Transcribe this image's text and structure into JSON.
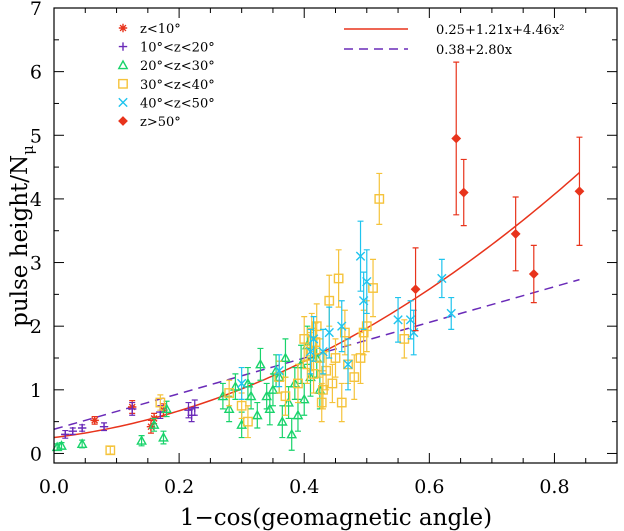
{
  "chart_data": {
    "type": "scatter",
    "xlabel": "1−cos(geomagnetic angle)",
    "ylabel_main": "pulse height/N",
    "ylabel_sub": "μ",
    "xlim": [
      0,
      0.9
    ],
    "ylim": [
      -0.15,
      7
    ],
    "xticks": [
      0.0,
      0.2,
      0.4,
      0.6,
      0.8
    ],
    "xtick_labels": [
      "0.0",
      "0.2",
      "0.4",
      "0.6",
      "0.8"
    ],
    "yticks": [
      0,
      1,
      2,
      3,
      4,
      5,
      6,
      7
    ],
    "ytick_labels": [
      "0",
      "1",
      "2",
      "3",
      "4",
      "5",
      "6",
      "7"
    ],
    "grid": false,
    "legend_position": "top-left and top-center",
    "series": [
      {
        "name": "z<10°",
        "marker": "asterisk",
        "color": "#e8341c",
        "points": [
          {
            "x": 0.065,
            "y": 0.52,
            "e": 0.06
          },
          {
            "x": 0.125,
            "y": 0.73,
            "e": 0.1
          },
          {
            "x": 0.155,
            "y": 0.42,
            "e": 0.1
          },
          {
            "x": 0.16,
            "y": 0.55,
            "e": 0.08
          },
          {
            "x": 0.175,
            "y": 0.68,
            "e": 0.1
          }
        ]
      },
      {
        "name": "10°<z<20°",
        "marker": "plus",
        "color": "#6a2bb8",
        "points": [
          {
            "x": 0.018,
            "y": 0.3,
            "e": 0.06
          },
          {
            "x": 0.03,
            "y": 0.35,
            "e": 0.05
          },
          {
            "x": 0.045,
            "y": 0.4,
            "e": 0.05
          },
          {
            "x": 0.08,
            "y": 0.42,
            "e": 0.06
          },
          {
            "x": 0.125,
            "y": 0.7,
            "e": 0.1
          },
          {
            "x": 0.17,
            "y": 0.65,
            "e": 0.1
          },
          {
            "x": 0.215,
            "y": 0.68,
            "e": 0.12
          },
          {
            "x": 0.225,
            "y": 0.72,
            "e": 0.12
          },
          {
            "x": 0.22,
            "y": 0.6,
            "e": 0.1
          }
        ]
      },
      {
        "name": "20°<z<30°",
        "marker": "triangle",
        "color": "#19d36b",
        "points": [
          {
            "x": 0.005,
            "y": 0.1,
            "e": 0.05
          },
          {
            "x": 0.012,
            "y": 0.12,
            "e": 0.05
          },
          {
            "x": 0.045,
            "y": 0.15,
            "e": 0.06
          },
          {
            "x": 0.14,
            "y": 0.2,
            "e": 0.08
          },
          {
            "x": 0.16,
            "y": 0.45,
            "e": 0.1
          },
          {
            "x": 0.175,
            "y": 0.25,
            "e": 0.1
          },
          {
            "x": 0.18,
            "y": 0.7,
            "e": 0.12
          },
          {
            "x": 0.27,
            "y": 0.9,
            "e": 0.2
          },
          {
            "x": 0.28,
            "y": 0.7,
            "e": 0.2
          },
          {
            "x": 0.29,
            "y": 1.05,
            "e": 0.2
          },
          {
            "x": 0.3,
            "y": 0.45,
            "e": 0.2
          },
          {
            "x": 0.31,
            "y": 1.1,
            "e": 0.25
          },
          {
            "x": 0.315,
            "y": 0.9,
            "e": 0.2
          },
          {
            "x": 0.325,
            "y": 0.6,
            "e": 0.2
          },
          {
            "x": 0.33,
            "y": 1.4,
            "e": 0.25
          },
          {
            "x": 0.34,
            "y": 0.9,
            "e": 0.2
          },
          {
            "x": 0.345,
            "y": 0.7,
            "e": 0.25
          },
          {
            "x": 0.35,
            "y": 1.0,
            "e": 0.25
          },
          {
            "x": 0.355,
            "y": 1.3,
            "e": 0.25
          },
          {
            "x": 0.36,
            "y": 1.2,
            "e": 0.25
          },
          {
            "x": 0.365,
            "y": 0.5,
            "e": 0.25
          },
          {
            "x": 0.37,
            "y": 1.5,
            "e": 0.3
          },
          {
            "x": 0.375,
            "y": 0.8,
            "e": 0.25
          },
          {
            "x": 0.38,
            "y": 0.3,
            "e": 0.25
          },
          {
            "x": 0.385,
            "y": 1.1,
            "e": 0.25
          },
          {
            "x": 0.39,
            "y": 0.6,
            "e": 0.25
          },
          {
            "x": 0.395,
            "y": 1.4,
            "e": 0.3
          },
          {
            "x": 0.4,
            "y": 0.85,
            "e": 0.25
          },
          {
            "x": 0.405,
            "y": 1.7,
            "e": 0.3
          },
          {
            "x": 0.41,
            "y": 1.2,
            "e": 0.3
          },
          {
            "x": 0.42,
            "y": 1.5,
            "e": 0.3
          },
          {
            "x": 0.425,
            "y": 1.0,
            "e": 0.3
          }
        ]
      },
      {
        "name": "30°<z<40°",
        "marker": "square",
        "color": "#f5c33b",
        "points": [
          {
            "x": 0.09,
            "y": 0.05,
            "e": 0.06
          },
          {
            "x": 0.17,
            "y": 0.8,
            "e": 0.12
          },
          {
            "x": 0.28,
            "y": 0.95,
            "e": 0.2
          },
          {
            "x": 0.3,
            "y": 0.75,
            "e": 0.2
          },
          {
            "x": 0.31,
            "y": 0.5,
            "e": 0.25
          },
          {
            "x": 0.36,
            "y": 1.2,
            "e": 0.25
          },
          {
            "x": 0.37,
            "y": 0.9,
            "e": 0.3
          },
          {
            "x": 0.39,
            "y": 1.1,
            "e": 0.3
          },
          {
            "x": 0.4,
            "y": 1.8,
            "e": 0.35
          },
          {
            "x": 0.405,
            "y": 1.4,
            "e": 0.3
          },
          {
            "x": 0.41,
            "y": 1.6,
            "e": 0.3
          },
          {
            "x": 0.412,
            "y": 1.9,
            "e": 0.3
          },
          {
            "x": 0.415,
            "y": 1.25,
            "e": 0.3
          },
          {
            "x": 0.418,
            "y": 1.75,
            "e": 0.3
          },
          {
            "x": 0.42,
            "y": 2.0,
            "e": 0.35
          },
          {
            "x": 0.425,
            "y": 1.5,
            "e": 0.3
          },
          {
            "x": 0.428,
            "y": 0.8,
            "e": 0.3
          },
          {
            "x": 0.43,
            "y": 1.0,
            "e": 0.3
          },
          {
            "x": 0.435,
            "y": 1.3,
            "e": 0.3
          },
          {
            "x": 0.44,
            "y": 2.4,
            "e": 0.4
          },
          {
            "x": 0.445,
            "y": 1.1,
            "e": 0.3
          },
          {
            "x": 0.45,
            "y": 1.5,
            "e": 0.3
          },
          {
            "x": 0.455,
            "y": 2.75,
            "e": 0.45
          },
          {
            "x": 0.46,
            "y": 0.8,
            "e": 0.3
          },
          {
            "x": 0.465,
            "y": 1.9,
            "e": 0.35
          },
          {
            "x": 0.47,
            "y": 1.4,
            "e": 0.3
          },
          {
            "x": 0.48,
            "y": 1.2,
            "e": 0.35
          },
          {
            "x": 0.49,
            "y": 1.5,
            "e": 0.4
          },
          {
            "x": 0.495,
            "y": 1.9,
            "e": 0.35
          },
          {
            "x": 0.5,
            "y": 2.0,
            "e": 0.4
          },
          {
            "x": 0.51,
            "y": 2.6,
            "e": 0.45
          },
          {
            "x": 0.52,
            "y": 4.0,
            "e": 0.4
          },
          {
            "x": 0.56,
            "y": 1.8,
            "e": 0.3
          }
        ]
      },
      {
        "name": "40°<z<50°",
        "marker": "cross",
        "color": "#1fc4ee",
        "points": [
          {
            "x": 0.3,
            "y": 1.1,
            "e": 0.25
          },
          {
            "x": 0.36,
            "y": 1.3,
            "e": 0.25
          },
          {
            "x": 0.41,
            "y": 1.6,
            "e": 0.35
          },
          {
            "x": 0.415,
            "y": 1.8,
            "e": 0.35
          },
          {
            "x": 0.43,
            "y": 1.6,
            "e": 0.35
          },
          {
            "x": 0.44,
            "y": 1.9,
            "e": 0.4
          },
          {
            "x": 0.46,
            "y": 2.0,
            "e": 0.4
          },
          {
            "x": 0.47,
            "y": 1.4,
            "e": 0.4
          },
          {
            "x": 0.49,
            "y": 3.1,
            "e": 0.55
          },
          {
            "x": 0.495,
            "y": 2.4,
            "e": 0.45
          },
          {
            "x": 0.5,
            "y": 2.7,
            "e": 0.5
          },
          {
            "x": 0.55,
            "y": 2.1,
            "e": 0.35
          },
          {
            "x": 0.57,
            "y": 2.1,
            "e": 0.3
          },
          {
            "x": 0.575,
            "y": 1.9,
            "e": 0.35
          },
          {
            "x": 0.62,
            "y": 2.75,
            "e": 0.3
          },
          {
            "x": 0.635,
            "y": 2.2,
            "e": 0.25
          }
        ]
      },
      {
        "name": "z>50°",
        "marker": "diamond",
        "color": "#e8341c",
        "points": [
          {
            "x": 0.578,
            "y": 2.58,
            "e": 0.65
          },
          {
            "x": 0.643,
            "y": 4.95,
            "e": 1.2
          },
          {
            "x": 0.655,
            "y": 4.1,
            "e": 0.52
          },
          {
            "x": 0.738,
            "y": 3.45,
            "e": 0.58
          },
          {
            "x": 0.767,
            "y": 2.82,
            "e": 0.45
          },
          {
            "x": 0.84,
            "y": 4.12,
            "e": 0.85
          }
        ]
      }
    ],
    "fits": [
      {
        "name": "0.25+1.21x+4.46x²",
        "style": "solid",
        "color": "#e8341c",
        "coefficients": [
          0.25,
          1.21,
          4.46
        ],
        "xrange": [
          0,
          0.84
        ]
      },
      {
        "name": "0.38+2.80x",
        "style": "dashed",
        "color": "#6a2bb8",
        "coefficients": [
          0.38,
          2.8
        ],
        "xrange": [
          0,
          0.84
        ]
      }
    ]
  }
}
